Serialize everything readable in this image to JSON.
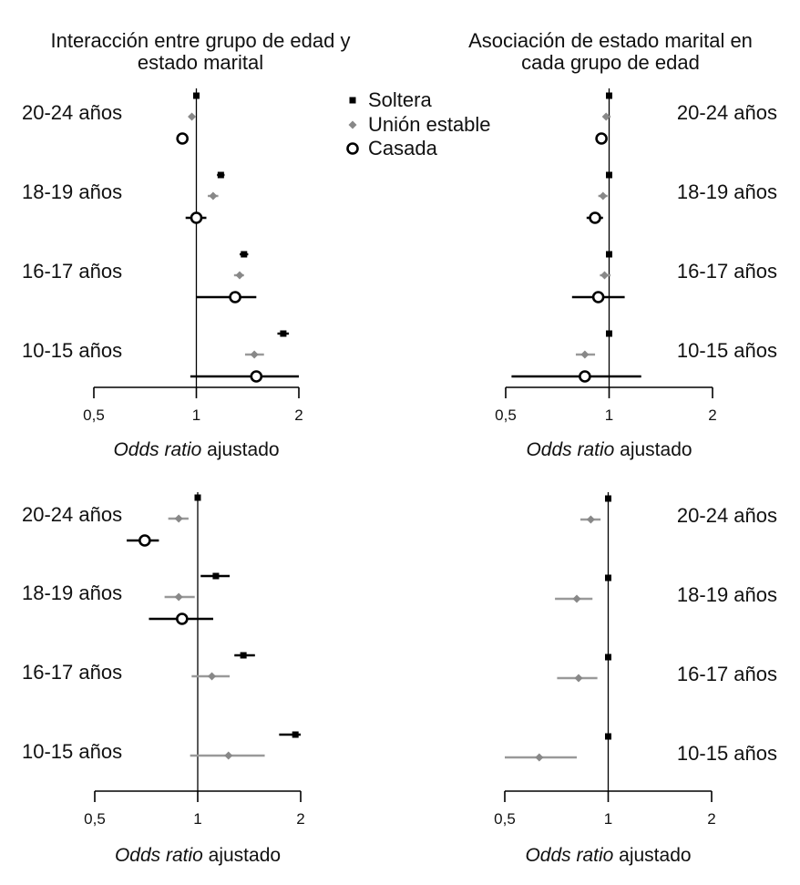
{
  "legend": {
    "items": [
      {
        "label": "Soltera",
        "color": "#000000",
        "marker": "square"
      },
      {
        "label": "Unión estable",
        "color": "#888888",
        "marker": "diamond"
      },
      {
        "label": "Casada",
        "color": "#000000",
        "marker": "circle"
      }
    ]
  },
  "chart_data": [
    {
      "type": "scatter",
      "title": "Interacción entre grupo de edad y estado marital",
      "xlabel_italic": "Odds ratio",
      "xlabel_rest": " ajustado",
      "xscale": "log",
      "xlim": [
        0.5,
        2
      ],
      "xticks": [
        "0,5",
        "1",
        "2"
      ],
      "reference_line": 1,
      "groups": [
        {
          "label": "20-24 años",
          "series": [
            {
              "name": "Soltera",
              "or": 1.0,
              "lo": 1.0,
              "hi": 1.0
            },
            {
              "name": "Unión estable",
              "or": 0.97,
              "lo": 0.95,
              "hi": 0.99
            },
            {
              "name": "Casada",
              "or": 0.91,
              "lo": 0.89,
              "hi": 0.93
            }
          ]
        },
        {
          "label": "18-19 años",
          "series": [
            {
              "name": "Soltera",
              "or": 1.18,
              "lo": 1.15,
              "hi": 1.21
            },
            {
              "name": "Unión estable",
              "or": 1.12,
              "lo": 1.08,
              "hi": 1.16
            },
            {
              "name": "Casada",
              "or": 1.0,
              "lo": 0.93,
              "hi": 1.07
            }
          ]
        },
        {
          "label": "16-17 años",
          "series": [
            {
              "name": "Soltera",
              "or": 1.38,
              "lo": 1.34,
              "hi": 1.42
            },
            {
              "name": "Unión estable",
              "or": 1.34,
              "lo": 1.29,
              "hi": 1.38
            },
            {
              "name": "Casada",
              "or": 1.3,
              "lo": 1.0,
              "hi": 1.5
            }
          ]
        },
        {
          "label": "10-15 años",
          "series": [
            {
              "name": "Soltera",
              "or": 1.8,
              "lo": 1.73,
              "hi": 1.87
            },
            {
              "name": "Unión estable",
              "or": 1.48,
              "lo": 1.39,
              "hi": 1.58
            },
            {
              "name": "Casada",
              "or": 1.5,
              "lo": 0.96,
              "hi": 2.0
            }
          ]
        }
      ],
      "group_label_side": "left"
    },
    {
      "type": "scatter",
      "title": "Asociación de estado marital en cada grupo de edad",
      "xlabel_italic": "Odds ratio",
      "xlabel_rest": " ajustado",
      "xscale": "log",
      "xlim": [
        0.5,
        2
      ],
      "xticks": [
        "0,5",
        "1",
        "2"
      ],
      "reference_line": 1,
      "groups": [
        {
          "label": "20-24 años",
          "series": [
            {
              "name": "Soltera",
              "or": 1.0,
              "lo": 1.0,
              "hi": 1.0
            },
            {
              "name": "Unión estable",
              "or": 0.98,
              "lo": 0.96,
              "hi": 1.01
            },
            {
              "name": "Casada",
              "or": 0.95,
              "lo": 0.93,
              "hi": 0.97
            }
          ]
        },
        {
          "label": "18-19 años",
          "series": [
            {
              "name": "Soltera",
              "or": 1.0,
              "lo": 1.0,
              "hi": 1.0
            },
            {
              "name": "Unión estable",
              "or": 0.96,
              "lo": 0.93,
              "hi": 0.99
            },
            {
              "name": "Casada",
              "or": 0.91,
              "lo": 0.86,
              "hi": 0.96
            }
          ]
        },
        {
          "label": "16-17 años",
          "series": [
            {
              "name": "Soltera",
              "or": 1.0,
              "lo": 1.0,
              "hi": 1.0
            },
            {
              "name": "Unión estable",
              "or": 0.97,
              "lo": 0.94,
              "hi": 1.01
            },
            {
              "name": "Casada",
              "or": 0.93,
              "lo": 0.78,
              "hi": 1.11
            }
          ]
        },
        {
          "label": "10-15 años",
          "series": [
            {
              "name": "Soltera",
              "or": 1.0,
              "lo": 1.0,
              "hi": 1.0
            },
            {
              "name": "Unión estable",
              "or": 0.85,
              "lo": 0.8,
              "hi": 0.91
            },
            {
              "name": "Casada",
              "or": 0.85,
              "lo": 0.52,
              "hi": 1.24
            }
          ]
        }
      ],
      "group_label_side": "right"
    },
    {
      "type": "scatter",
      "title": "",
      "xlabel_italic": "Odds ratio",
      "xlabel_rest": " ajustado",
      "xscale": "log",
      "xlim": [
        0.5,
        2
      ],
      "xticks": [
        "0,5",
        "1",
        "2"
      ],
      "reference_line": 1,
      "groups": [
        {
          "label": "20-24 años",
          "series": [
            {
              "name": "Soltera",
              "or": 1.0,
              "lo": 1.0,
              "hi": 1.0
            },
            {
              "name": "Unión estable",
              "or": 0.88,
              "lo": 0.82,
              "hi": 0.94
            },
            {
              "name": "Casada",
              "or": 0.7,
              "lo": 0.62,
              "hi": 0.77
            }
          ]
        },
        {
          "label": "18-19 años",
          "series": [
            {
              "name": "Soltera",
              "or": 1.13,
              "lo": 1.02,
              "hi": 1.24
            },
            {
              "name": "Unión estable",
              "or": 0.88,
              "lo": 0.8,
              "hi": 0.98
            },
            {
              "name": "Casada",
              "or": 0.9,
              "lo": 0.72,
              "hi": 1.11
            }
          ]
        },
        {
          "label": "16-17 años",
          "series": [
            {
              "name": "Soltera",
              "or": 1.36,
              "lo": 1.28,
              "hi": 1.47
            },
            {
              "name": "Unión estable",
              "or": 1.1,
              "lo": 0.96,
              "hi": 1.24
            }
          ]
        },
        {
          "label": "10-15 años",
          "series": [
            {
              "name": "Soltera",
              "or": 1.93,
              "lo": 1.73,
              "hi": 2.0
            },
            {
              "name": "Unión estable",
              "or": 1.23,
              "lo": 0.95,
              "hi": 1.57
            }
          ]
        }
      ],
      "group_label_side": "left"
    },
    {
      "type": "scatter",
      "title": "",
      "xlabel_italic": "Odds ratio",
      "xlabel_rest": " ajustado",
      "xscale": "log",
      "xlim": [
        0.5,
        2
      ],
      "xticks": [
        "0,5",
        "1",
        "2"
      ],
      "reference_line": 1,
      "groups": [
        {
          "label": "20-24 años",
          "series": [
            {
              "name": "Soltera",
              "or": 1.0,
              "lo": 1.0,
              "hi": 1.0
            },
            {
              "name": "Unión estable",
              "or": 0.89,
              "lo": 0.83,
              "hi": 0.95
            }
          ]
        },
        {
          "label": "18-19 años",
          "series": [
            {
              "name": "Soltera",
              "or": 1.0,
              "lo": 1.0,
              "hi": 1.0
            },
            {
              "name": "Unión estable",
              "or": 0.81,
              "lo": 0.7,
              "hi": 0.9
            }
          ]
        },
        {
          "label": "16-17 años",
          "series": [
            {
              "name": "Soltera",
              "or": 1.0,
              "lo": 1.0,
              "hi": 1.0
            },
            {
              "name": "Unión estable",
              "or": 0.82,
              "lo": 0.71,
              "hi": 0.93
            }
          ]
        },
        {
          "label": "10-15 años",
          "series": [
            {
              "name": "Soltera",
              "or": 1.0,
              "lo": 1.0,
              "hi": 1.0
            },
            {
              "name": "Unión estable",
              "or": 0.63,
              "lo": 0.5,
              "hi": 0.81
            }
          ]
        }
      ],
      "group_label_side": "right"
    }
  ]
}
